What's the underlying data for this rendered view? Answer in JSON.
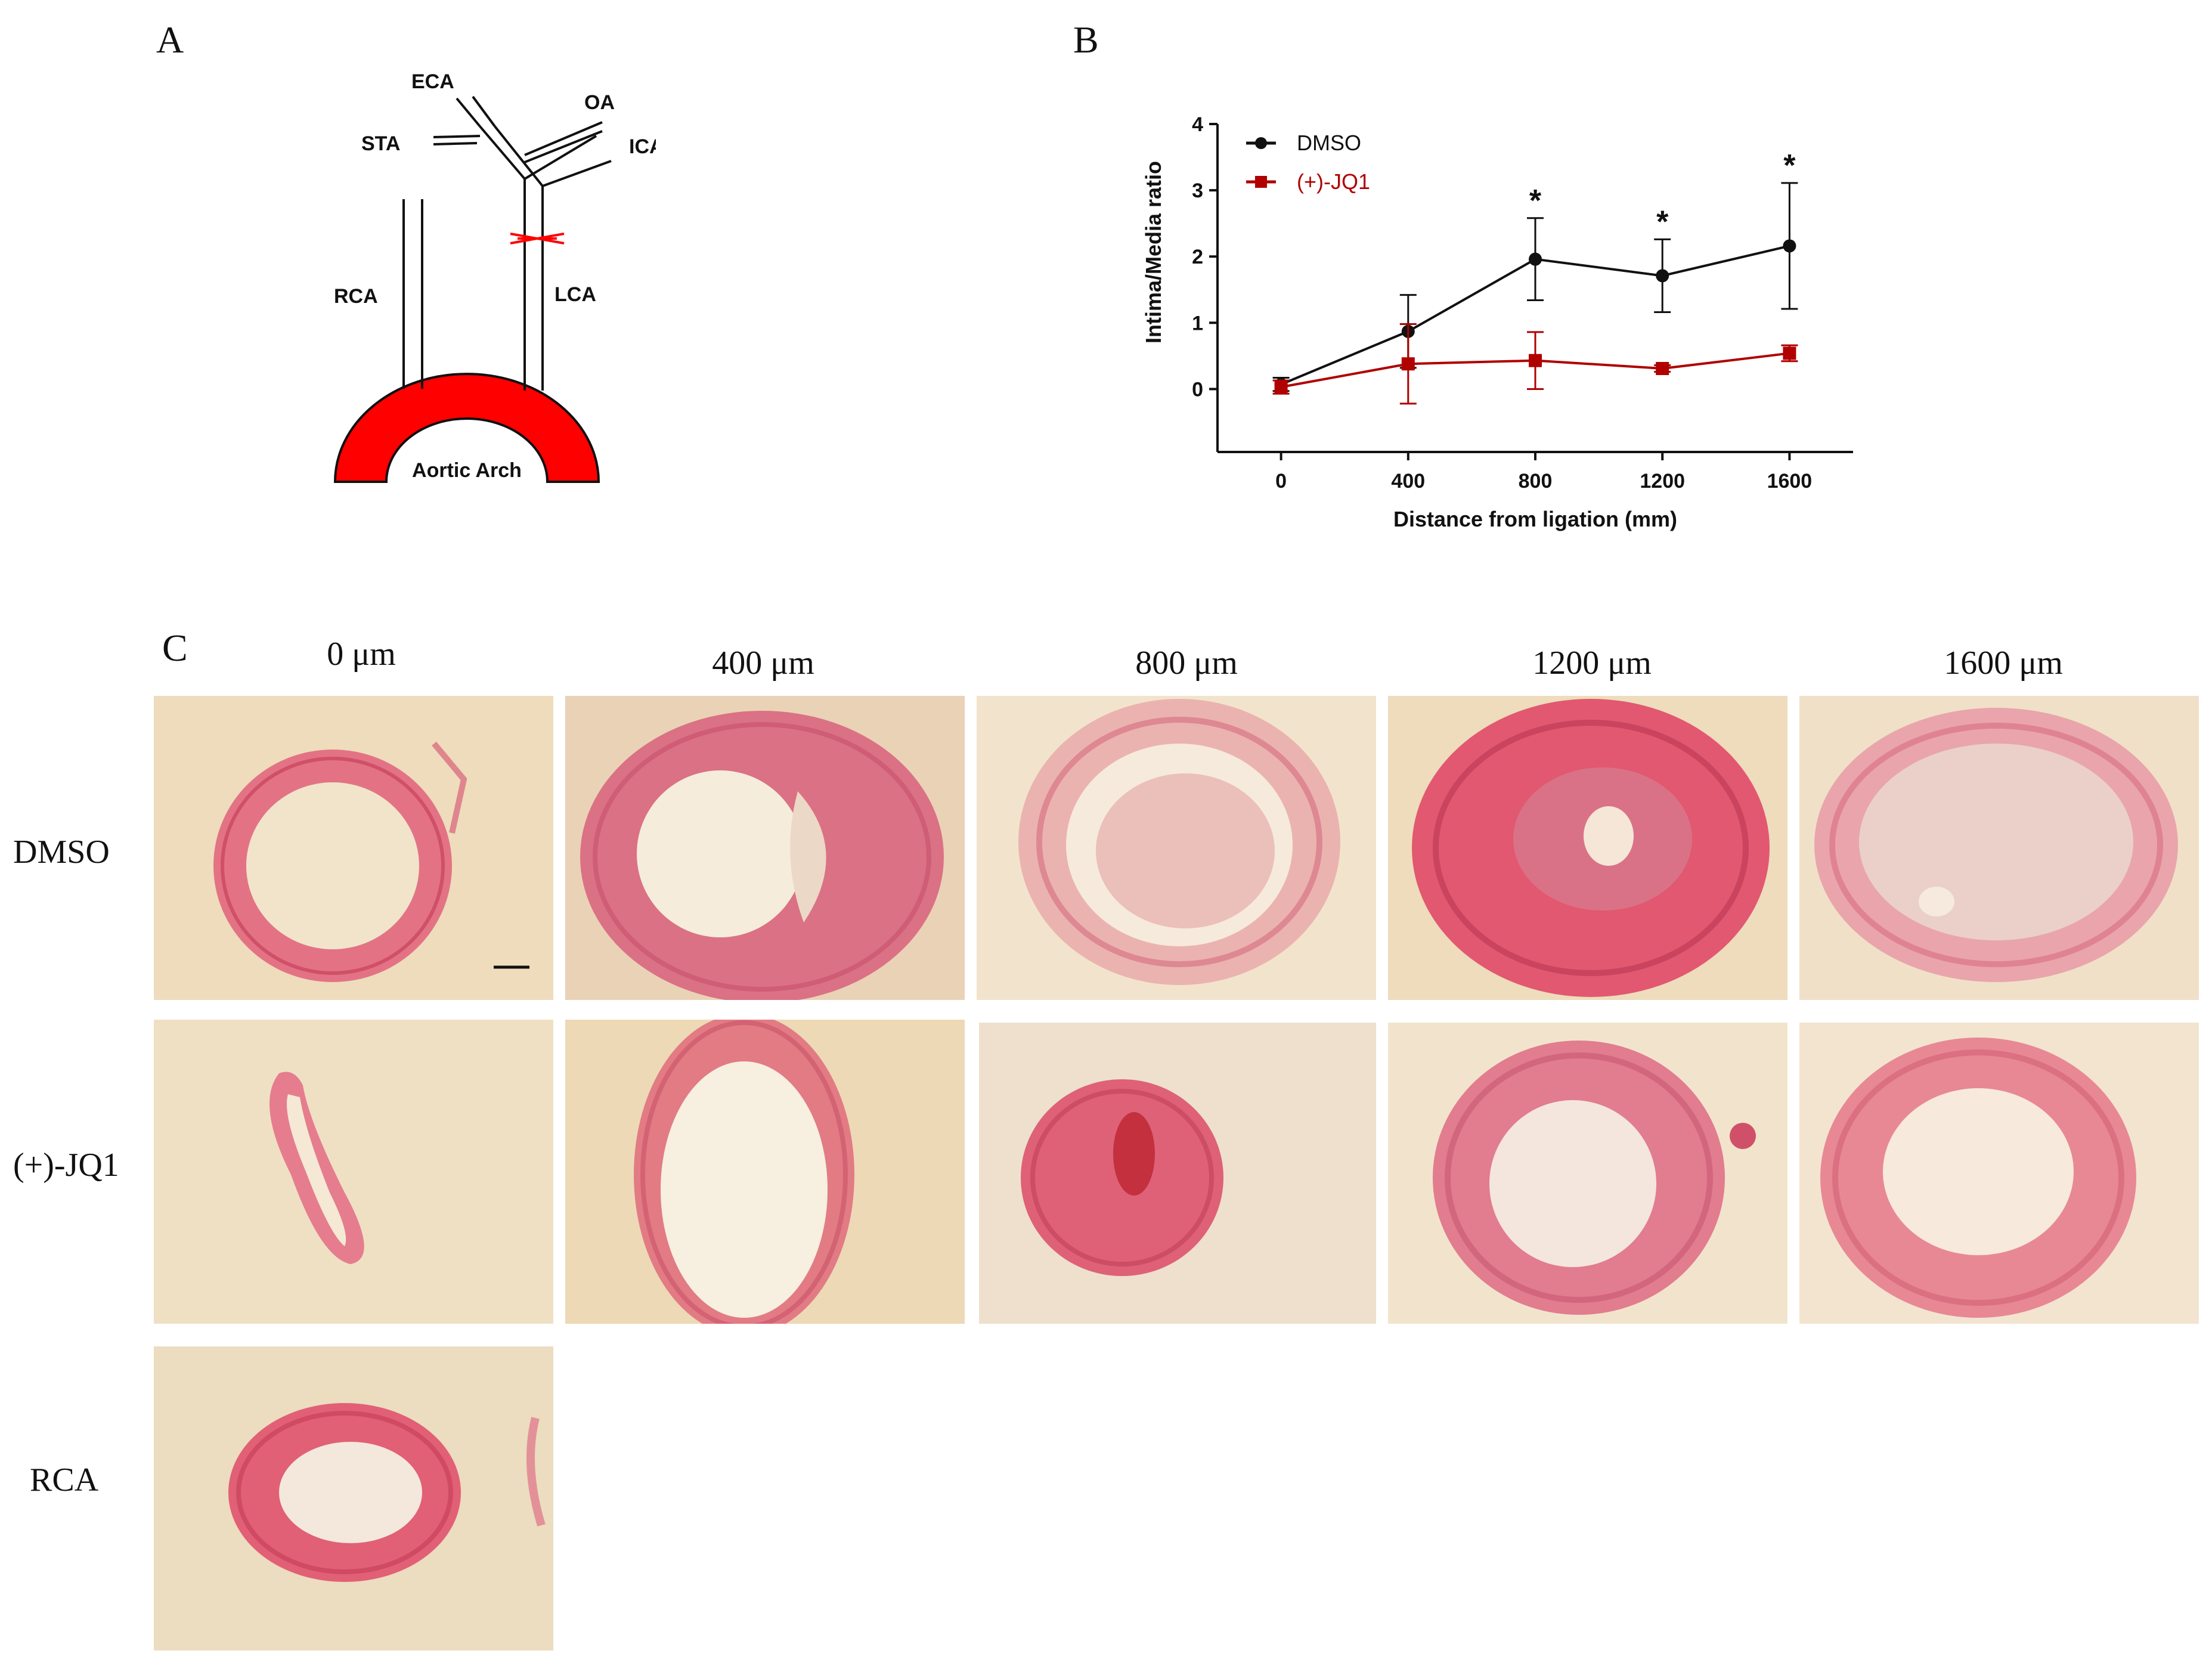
{
  "panel_a": {
    "letter": "A",
    "labels": {
      "eca": "ECA",
      "oa": "OA",
      "sta": "STA",
      "ica": "ICA",
      "rca": "RCA",
      "lca": "LCA",
      "arch": "Aortic Arch"
    },
    "colors": {
      "arch": "#ff0000",
      "ligature": "#ff0000",
      "vessel": "#111111"
    }
  },
  "panel_b": {
    "letter": "B",
    "legend": {
      "series_1": "DMSO",
      "series_2": "(+)-JQ1"
    },
    "significance_mark": "*",
    "colors": {
      "dmso": "#111111",
      "jq1": "#b00000"
    }
  },
  "chart_data": {
    "type": "line",
    "xlabel": "Distance from ligation (mm)",
    "ylabel": "Intima/Media ratio",
    "x": [
      0,
      400,
      800,
      1200,
      1600
    ],
    "x_ticks": [
      "0",
      "400",
      "800",
      "1200",
      "1600"
    ],
    "y_ticks": [
      "0",
      "1",
      "2",
      "3",
      "4"
    ],
    "ylim": [
      -0.95,
      4
    ],
    "xlim": [
      -200,
      1800
    ],
    "grid": false,
    "legend_position": "top-left",
    "series": [
      {
        "name": "DMSO",
        "values": [
          0.07,
          0.87,
          1.96,
          1.71,
          2.16
        ],
        "error": [
          0.1,
          0.55,
          0.62,
          0.55,
          0.95
        ],
        "significant": [
          false,
          false,
          true,
          true,
          true
        ],
        "marker": "circle",
        "color": "#111111"
      },
      {
        "name": "(+)-JQ1",
        "values": [
          0.03,
          0.38,
          0.43,
          0.31,
          0.54
        ],
        "error": [
          0.1,
          0.6,
          0.43,
          0.05,
          0.12
        ],
        "significant": [
          false,
          false,
          false,
          false,
          false
        ],
        "marker": "square",
        "color": "#b00000"
      }
    ]
  },
  "panel_c": {
    "letter": "C",
    "columns": [
      "0 μm",
      "400 μm",
      "800 μm",
      "1200 μm",
      "1600 μm"
    ],
    "rows": [
      "DMSO",
      "(+)-JQ1",
      "RCA"
    ],
    "colors": {
      "tissue": "#e0607a",
      "background": "#eedcbc"
    }
  }
}
